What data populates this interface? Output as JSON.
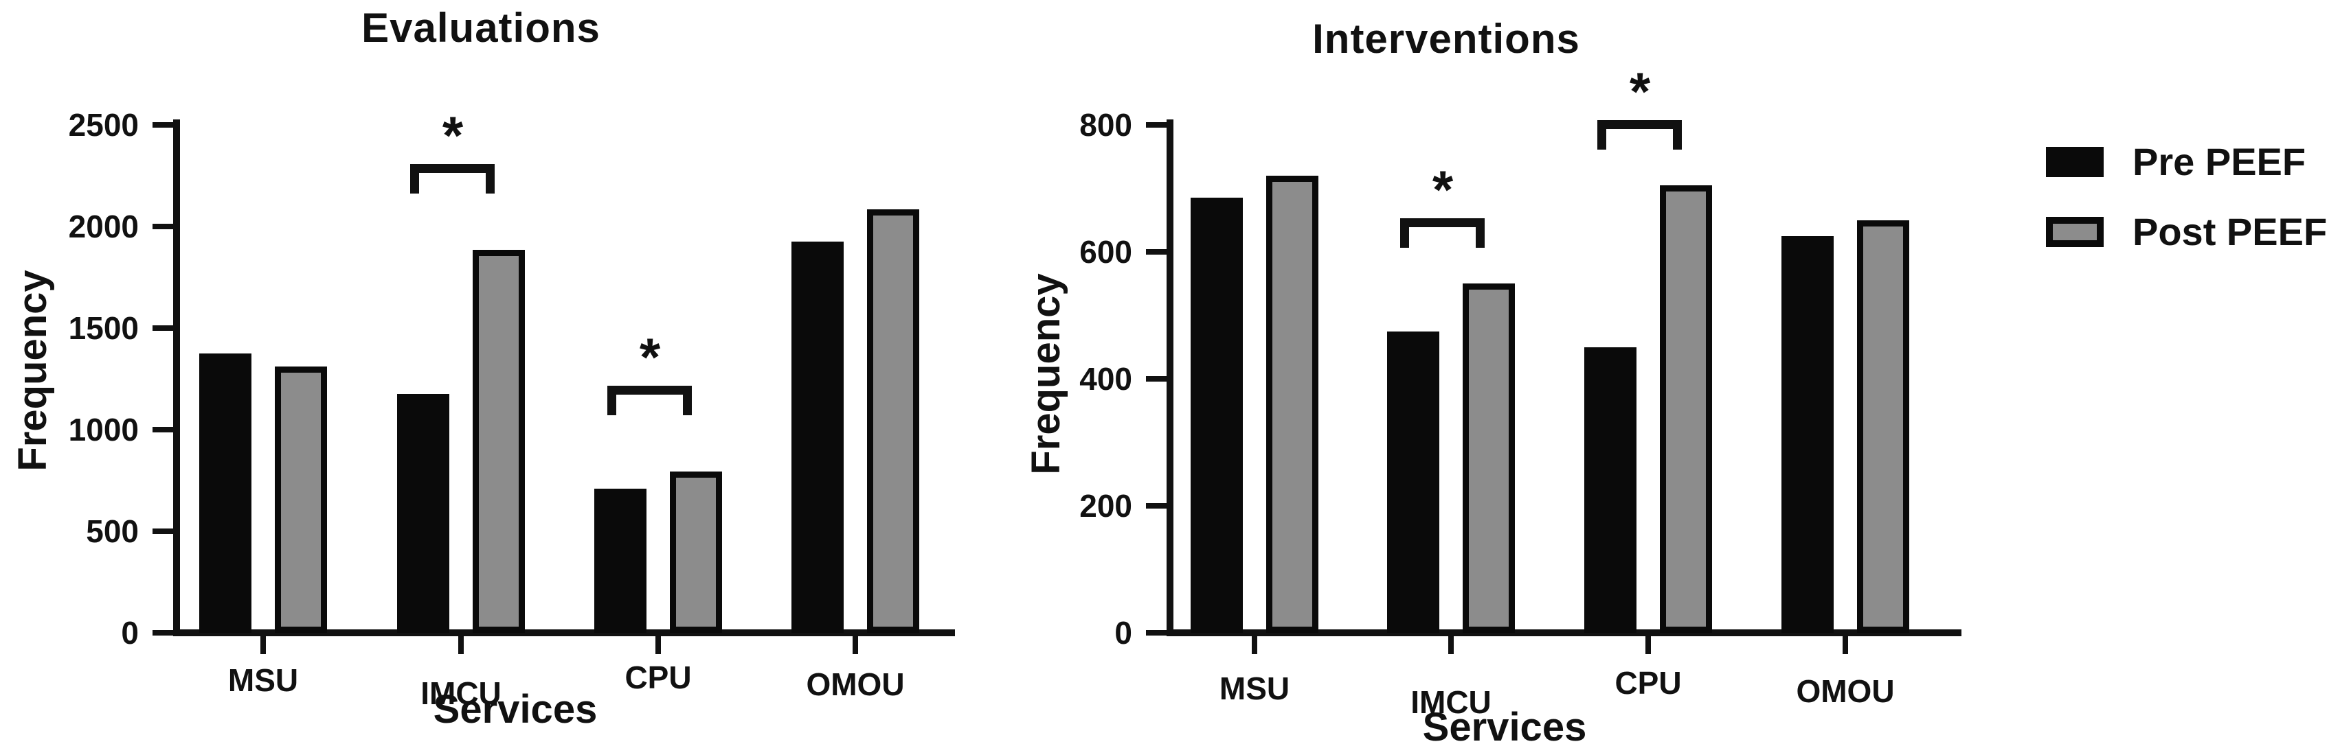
{
  "colors": {
    "bar_pre": "#0a0a0a",
    "bar_post": "#8c8c8c",
    "axis": "#111111",
    "text": "#111111",
    "background": "#ffffff"
  },
  "legend": {
    "items": [
      {
        "label": "Pre PEEF",
        "series": "pre"
      },
      {
        "label": "Post PEEF",
        "series": "post"
      }
    ]
  },
  "chart_data": [
    {
      "type": "bar",
      "title": "Evaluations",
      "xlabel": "Services",
      "ylabel": "Frequency",
      "categories": [
        "MSU",
        "IMCU",
        "CPU",
        "OMOU"
      ],
      "series": [
        {
          "name": "Pre PEEF",
          "values": [
            1375,
            1175,
            710,
            1925
          ]
        },
        {
          "name": "Post PEEF",
          "values": [
            1310,
            1885,
            795,
            2085
          ]
        }
      ],
      "ylim": [
        0,
        2500
      ],
      "yticks": [
        0,
        500,
        1000,
        1500,
        2000,
        2500
      ],
      "grid": false,
      "legend_position": "outside-right",
      "significance": [
        {
          "category": "IMCU",
          "marker": "*"
        },
        {
          "category": "CPU",
          "marker": "*"
        }
      ]
    },
    {
      "type": "bar",
      "title": "Interventions",
      "xlabel": "Services",
      "ylabel": "Frequency",
      "categories": [
        "MSU",
        "IMCU",
        "CPU",
        "OMOU"
      ],
      "series": [
        {
          "name": "Pre PEEF",
          "values": [
            685,
            475,
            450,
            625
          ]
        },
        {
          "name": "Post PEEF",
          "values": [
            720,
            550,
            705,
            650
          ]
        }
      ],
      "ylim": [
        0,
        800
      ],
      "yticks": [
        0,
        200,
        400,
        600,
        800
      ],
      "grid": false,
      "legend_position": "outside-right",
      "significance": [
        {
          "category": "IMCU",
          "marker": "*"
        },
        {
          "category": "CPU",
          "marker": "*"
        }
      ]
    }
  ]
}
